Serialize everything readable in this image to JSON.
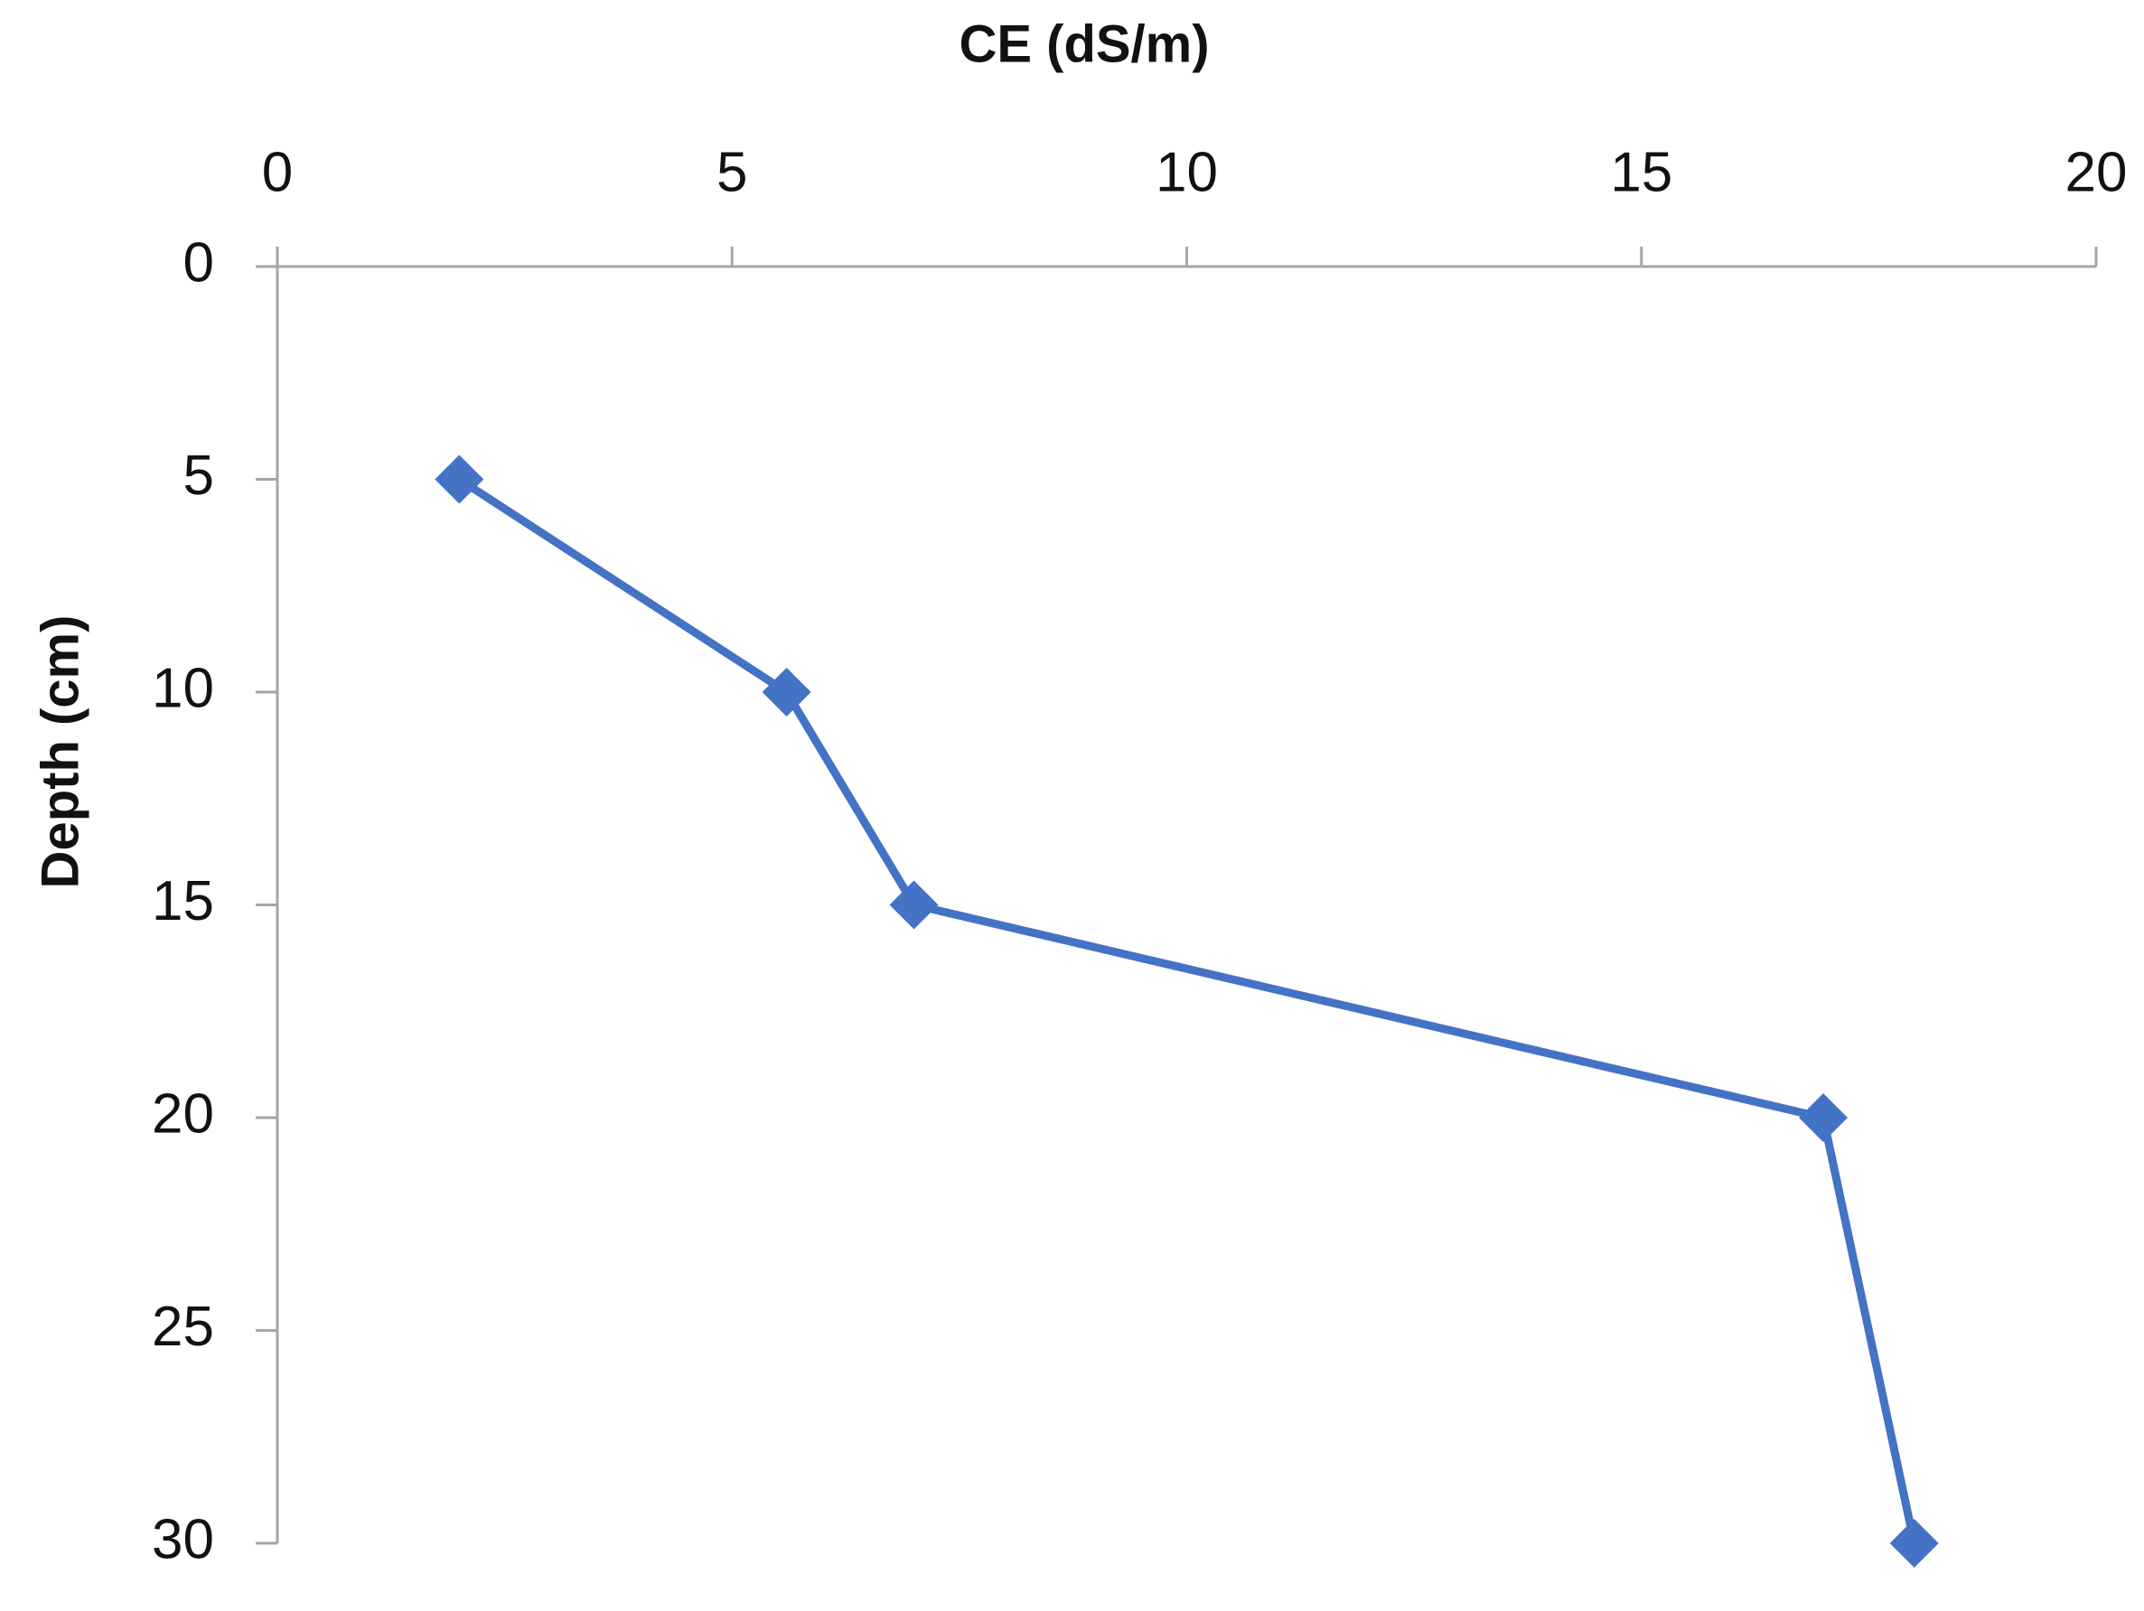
{
  "chart_data": {
    "type": "line",
    "x_title": "CE (dS/m)",
    "y_title": "Depth (cm)",
    "x": [
      2.0,
      5.6,
      7.0,
      17.0,
      18.0
    ],
    "values": [
      5,
      10,
      15,
      20,
      30
    ],
    "color": "#4472c4",
    "xlim": [
      0,
      20
    ],
    "xticks": [
      0,
      5,
      10,
      15,
      20
    ],
    "ylim": [
      0,
      30
    ],
    "yticks": [
      0,
      5,
      10,
      15,
      20,
      25,
      30
    ],
    "y_reversed": true,
    "x_axis_position": "top",
    "grid": false,
    "marker": "diamond"
  }
}
